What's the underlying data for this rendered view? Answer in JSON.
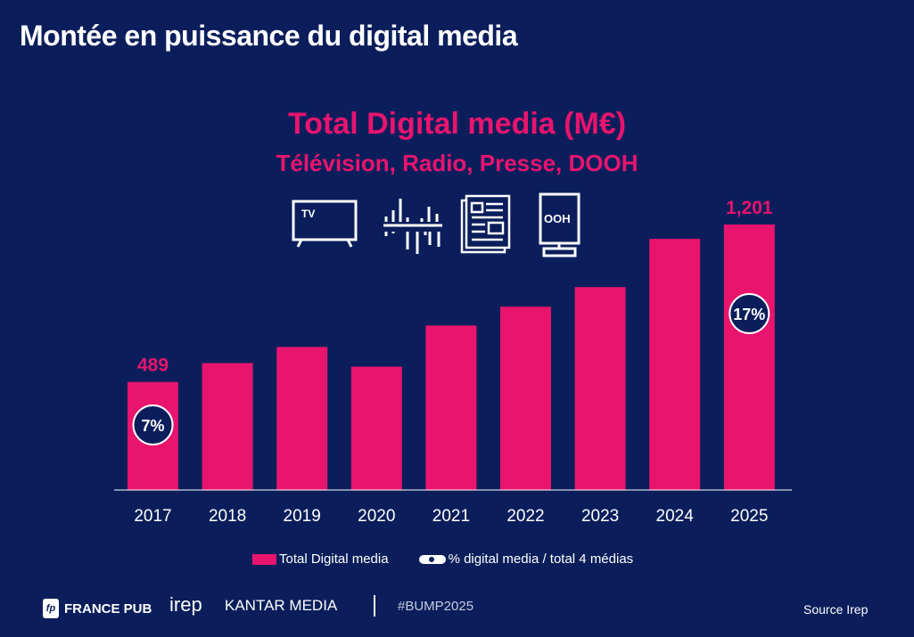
{
  "header": {
    "title": "Montée en puissance du digital media"
  },
  "chart_data": {
    "type": "bar",
    "title": "Total Digital media (M€)",
    "subtitle": "Télévision, Radio, Presse, DOOH",
    "categories": [
      "2017",
      "2018",
      "2019",
      "2020",
      "2021",
      "2022",
      "2023",
      "2024",
      "2025"
    ],
    "series": [
      {
        "name": "Total Digital media",
        "values": [
          489,
          574,
          647,
          558,
          744,
          829,
          918,
          1136,
          1201
        ]
      }
    ],
    "data_labels": [
      {
        "category": "2017",
        "text": "489"
      },
      {
        "category": "2025",
        "text": "1,201"
      }
    ],
    "share_labels": [
      {
        "category": "2017",
        "text": "7%"
      },
      {
        "category": "2025",
        "text": "17%"
      }
    ],
    "legend": [
      "Total Digital media",
      "% digital media / total 4 médias"
    ],
    "legend_placement": "bottom",
    "ylim": [
      0,
      1250
    ],
    "grid": false,
    "icons": [
      "tv-icon",
      "radio-waveform-icon",
      "newspaper-icon",
      "ooh-billboard-icon"
    ],
    "icon_texts": {
      "tv": "TV",
      "ooh": "OOH"
    },
    "colors": {
      "bar": "#e8146e",
      "background": "#0b1e5b",
      "label": "#e8146e"
    }
  },
  "footer": {
    "logos": [
      "FRANCE PUB",
      "irep",
      "KANTAR MEDIA"
    ],
    "hashtag": "#BUMP2025",
    "source": "Source Irep"
  }
}
